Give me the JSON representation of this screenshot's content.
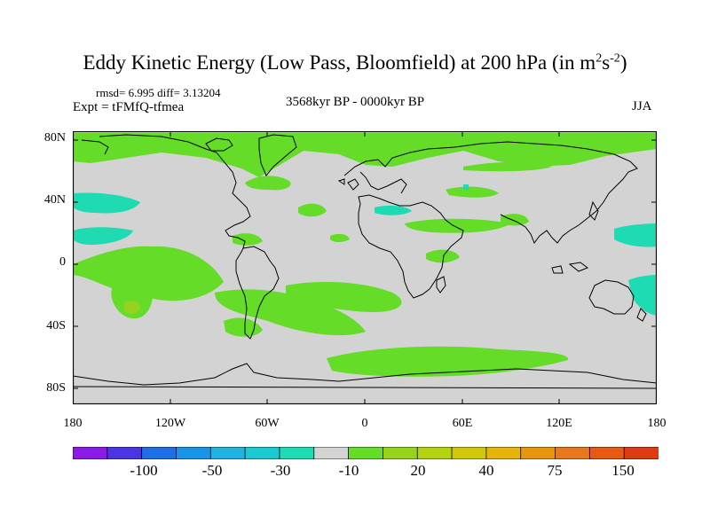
{
  "title": {
    "main": "Eddy Kinetic Energy (Low Pass, Bloomfield) at 200 hPa (in m",
    "sup1": "2",
    "s": "s",
    "sup2": "-2",
    "close": ")"
  },
  "stats": "rmsd= 6.995 diff= 3.13204",
  "expt": "Expt = tFMfQ-tfmea",
  "period": "3568kyr BP - 0000kyr BP",
  "season": "JJA",
  "lat_labels": [
    "80N",
    "40N",
    "0",
    "40S",
    "80S"
  ],
  "lon_labels": [
    "180",
    "120W",
    "60W",
    "0",
    "60E",
    "120E",
    "180"
  ],
  "colorbar": {
    "colors": [
      "#8a1ce6",
      "#4b35e0",
      "#1f6ee6",
      "#1a95e6",
      "#22b2e0",
      "#1ec8d2",
      "#1edbb4",
      "#d3d3d3",
      "#64dc28",
      "#96d21e",
      "#b4d20f",
      "#d2c80a",
      "#e6b40a",
      "#e6960f",
      "#e6781e",
      "#e65a14",
      "#dc3c14"
    ],
    "labels": [
      "-100",
      "-50",
      "-30",
      "-10",
      "20",
      "40",
      "75",
      "150"
    ]
  },
  "map_colors": {
    "background": "#d3d3d3",
    "positive": "#64dc28",
    "positive_strong": "#96d21e",
    "negative": "#1edbb4",
    "negative_strong": "#1ec8d2"
  }
}
